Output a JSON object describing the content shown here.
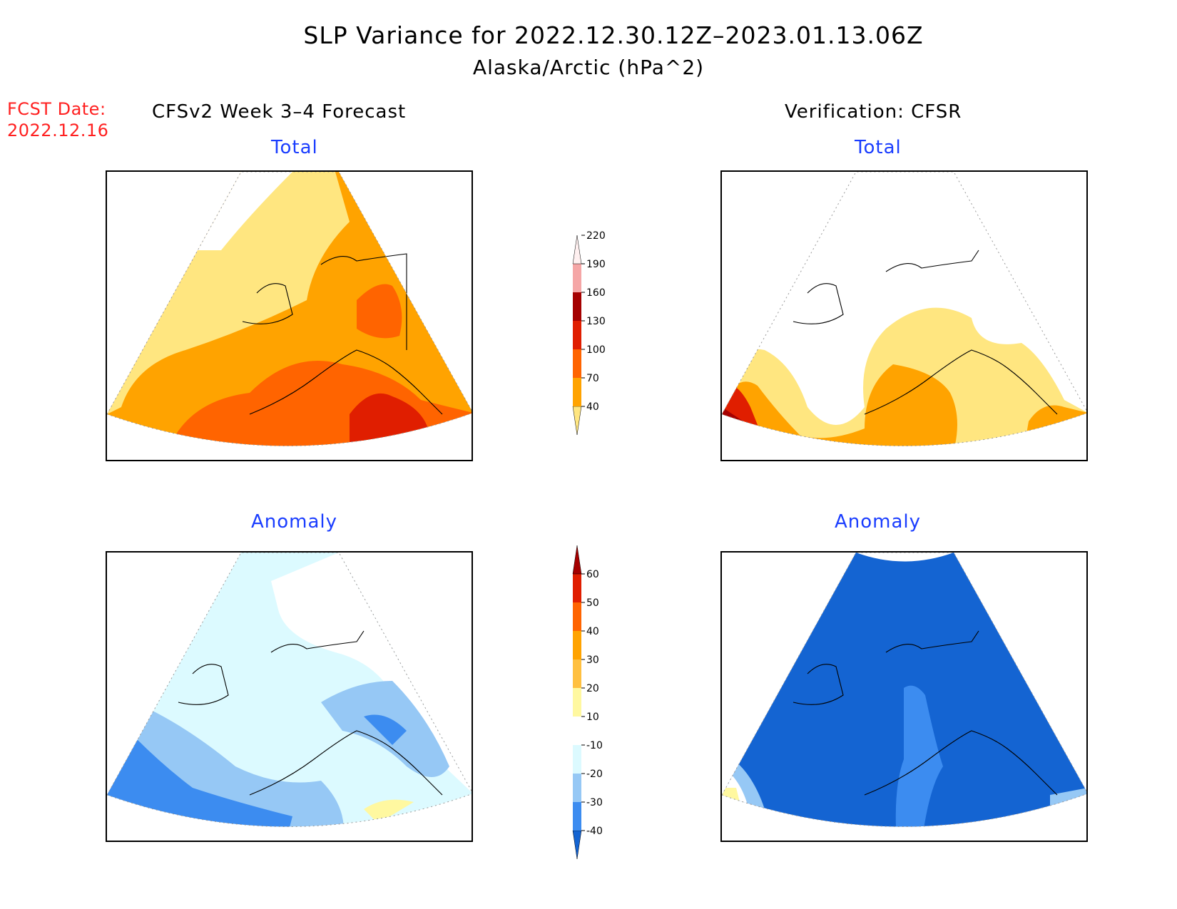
{
  "title": {
    "line1": "SLP Variance for 2022.12.30.12Z–2023.01.13.06Z",
    "line2": "Alaska/Arctic (hPa^2)"
  },
  "fcst_date": {
    "label": "FCST Date:",
    "value": "2022.12.16"
  },
  "columns": {
    "forecast": "CFSv2 Week 3–4 Forecast",
    "verification": "Verification: CFSR"
  },
  "panels": {
    "forecast_total": {
      "title": "Total"
    },
    "verification_total": {
      "title": "Total"
    },
    "forecast_anomaly": {
      "title": "Anomaly"
    },
    "verification_anomaly": {
      "title": "Anomaly"
    }
  },
  "total_colorbar": {
    "ticks": [
      "40",
      "70",
      "100",
      "130",
      "160",
      "190",
      "220"
    ],
    "colors": [
      "#ffe680",
      "#ffa300",
      "#ff6400",
      "#e01e00",
      "#a50000",
      "#f5a6a6",
      "#fff0f0"
    ]
  },
  "anomaly_colorbar": {
    "ticks": [
      "-40",
      "-30",
      "-20",
      "-10",
      "10",
      "20",
      "30",
      "40",
      "50",
      "60"
    ],
    "colors": [
      "#1464d2",
      "#3c8cf0",
      "#96c8f5",
      "#dcfaff",
      "#ffffff",
      "#fff8a0",
      "#ffc040",
      "#ffa300",
      "#ff6400",
      "#e01e00",
      "#a50000"
    ]
  },
  "fill_colors": {
    "white": "#ffffff",
    "lightyellow": "#ffe680",
    "orange": "#ffa300",
    "darkorange": "#ff6400",
    "red": "#e01e00",
    "darkred": "#a50000",
    "lightcyan": "#dcfaff",
    "lightblue": "#96c8f5",
    "midblue": "#3c8cf0",
    "blue": "#1464d2",
    "paleyellow": "#fff8a0"
  }
}
